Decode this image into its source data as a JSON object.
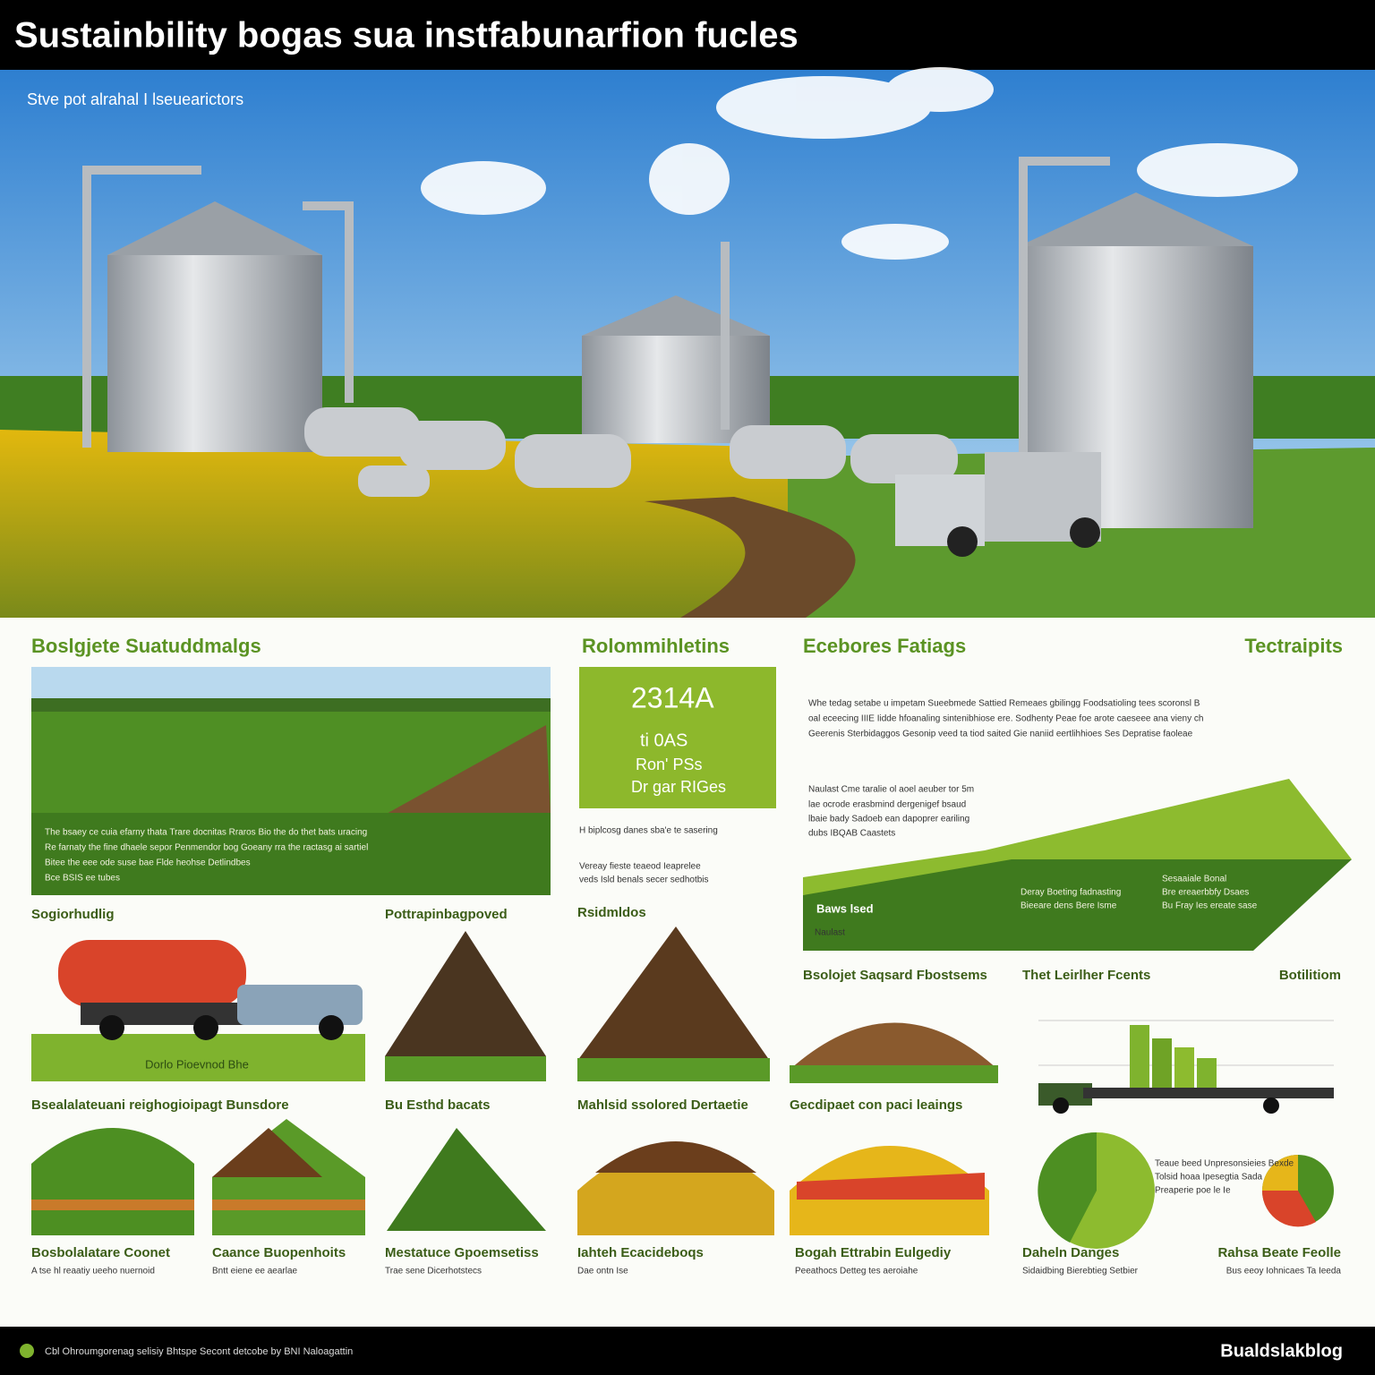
{
  "header": {
    "title": "Sustainbility bogas sua instfabunarfion fucles"
  },
  "hero": {
    "subtitle": "Stve pot alrahal I lseuearictors"
  },
  "sections": [
    "Boslgjete Suatuddmalgs",
    "Rolommihletins",
    "Ecebores Fatiags",
    "Tectraipits"
  ],
  "stats": [
    "2314A",
    "ti 0AS",
    "Ron' PSs",
    "Dr gar RIGes"
  ],
  "panels": [
    "Sogiorhudlig",
    "Pottrapinbagpoved",
    "Rsidmldos",
    "Dorlo Pioevnod Bhe",
    "Bsolojet Saqsard Fbostsems",
    "Thet Leirlher Fcents",
    "Botilitiom",
    "Bsealalateuani reighogioipagt Bunsdore",
    "Bu Esthd bacats",
    "Mahlsid ssolored Dertaetie",
    "Gecdipaet con paci leaings",
    "Naulast",
    "Baws lsed"
  ],
  "captions": [
    "Bosbolalatare Coonet",
    "Caance Buopenhoits",
    "Mestatuce Gpoemsetiss",
    "Iahteh Ecacideboqs",
    "Bogah Ettrabin Eulgediy",
    "Daheln Danges",
    "Rahsa Beate Feolle"
  ],
  "texts": [
    "The bsaey ce cuia efarny thata Trare docnitas Rraros Bio the do thet bats uracing",
    "Re farnaty the fine dhaele sepor Penmendor bog Goeany rra the ractasg ai sartiel",
    "Bitee the eee ode suse bae Flde heohse Detlindbes",
    "Bce BSIS ee tubes",
    "Whe tedag setabe u impetam Sueebmede Sattied Remeaes gbilingg Foodsatioling tees scoronsl B",
    "oal eceecing IIIE Iidde hfoanaling sintenibhiose ere. Sodhenty Peae foe arote caeseee ana vieny ch",
    "Geerenis Sterbidaggos Gesonip veed ta tiod saited Gie naniid eertlihhioes Ses Depratise faoleae",
    "Naulast Cme taralie ol aoel aeuber tor 5m",
    "lae ocrode erasbmind dergenigef bsaud",
    "lbaie bady Sadoeb ean dapoprer eariling",
    "dubs IBQAB Caastets",
    "H biplcosg danes sba'e te sasering",
    "Vereay fieste teaeod Ieaprelee",
    "veds Isld benals secer sedhotbis",
    "Deray Boeting fadnasting",
    "Bieeare dens Bere Isme",
    "Sesaaiale Bonal",
    "Bre ereaerbbfy Dsaes",
    "Bu Fray Ies ereate sase",
    "A tse hl reaatiy ueeho nuernoid",
    "Bntt eiene ee aearlae",
    "Trae sene Dicerhotstecs",
    "Dae ontn Ise",
    "Peeathocs Detteg tes aeroiahe",
    "Sidaidbing Bierebtieg Setbier",
    "Bus eeoy Iohnicaes Ta Ieeda",
    "Teaue beed Unpresonsieies Bexde",
    "Tolsid hoaa Ipesegtia Sada",
    "Preaperie poe le Ie"
  ],
  "footer": {
    "text": "Cbl Ohroumgorenag selisiy Bhtspe Secont detcobe by BNI Naloagattin",
    "brand": "Bualdslakblog"
  }
}
